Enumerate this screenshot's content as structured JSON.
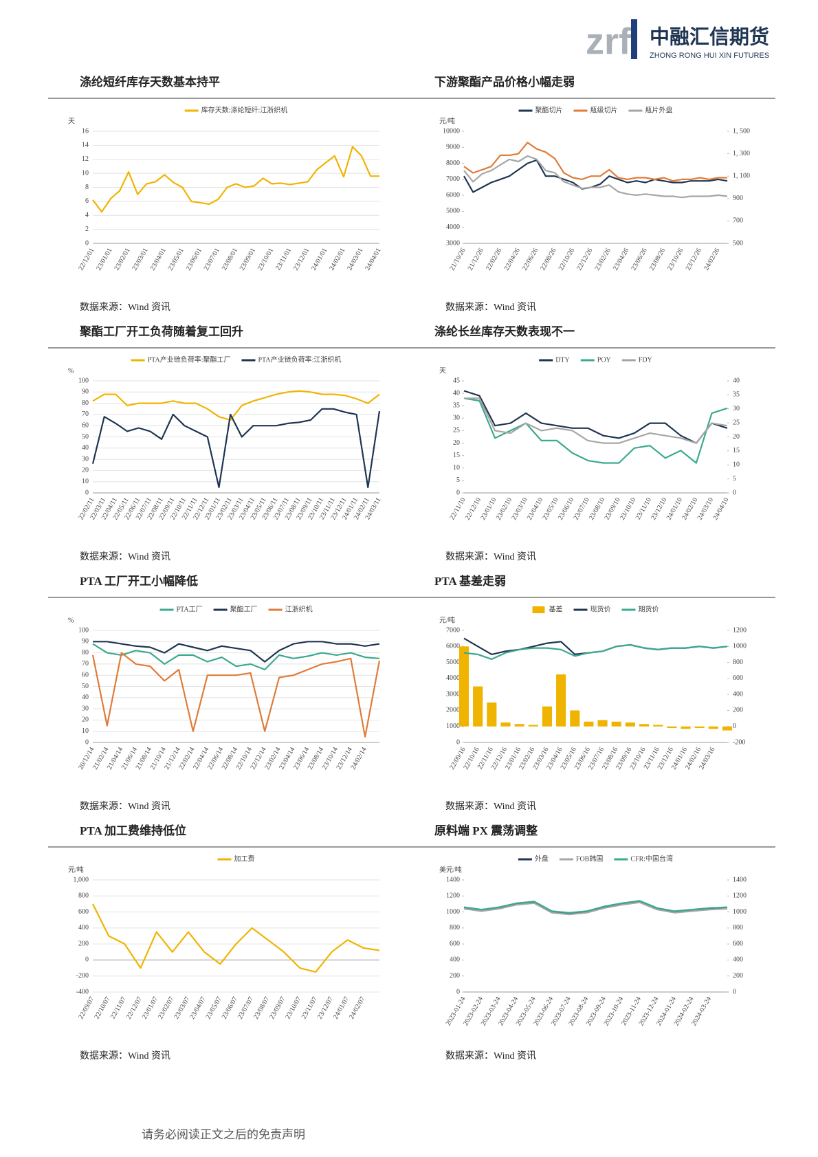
{
  "header": {
    "logo_mark": "zrf",
    "company_cn": "中融汇信期货",
    "company_en": "ZHONG RONG HUI XIN FUTURES"
  },
  "chart_data": [
    {
      "type": "line",
      "title": "涤纶短纤库存天数基本持平",
      "y_label": "天",
      "source": "数据来源：Wind 资讯",
      "grid": true,
      "categories": [
        "22/12/01",
        null,
        "23/01/01",
        null,
        "23/02/01",
        null,
        "23/03/01",
        null,
        "23/04/01",
        null,
        "23/05/01",
        null,
        "23/06/01",
        null,
        "23/07/01",
        null,
        "23/08/01",
        null,
        "23/09/01",
        null,
        "23/10/01",
        null,
        "23/11/01",
        null,
        "23/12/01",
        null,
        "24/01/01",
        null,
        "24/02/01",
        null,
        "24/03/01",
        null,
        "24/04/01"
      ],
      "series": [
        {
          "name": "库存天数:涤纶短纤:江浙织机",
          "color": "#f0b400",
          "values": [
            6.2,
            4.5,
            6.4,
            7.5,
            10.2,
            7.0,
            8.5,
            8.8,
            9.8,
            8.7,
            8.0,
            6.0,
            5.8,
            5.6,
            6.3,
            8.0,
            8.5,
            8.0,
            8.2,
            9.3,
            8.5,
            8.6,
            8.4,
            8.6,
            8.8,
            10.5,
            11.5,
            12.5,
            9.5,
            13.8,
            12.5,
            9.6,
            9.6
          ]
        }
      ],
      "ylim": [
        0,
        16
      ],
      "yticks": [
        0,
        2,
        4,
        6,
        8,
        10,
        12,
        14,
        16
      ]
    },
    {
      "type": "line",
      "title": "下游聚酯产品价格小幅走弱",
      "y_label": "元/吨",
      "source": "数据来源：Wind 资讯",
      "grid": false,
      "categories": [
        "21/10/26",
        null,
        "21/12/26",
        null,
        "22/02/26",
        null,
        "22/04/26",
        null,
        "22/06/26",
        null,
        "22/08/26",
        null,
        "22/10/26",
        null,
        "22/12/26",
        null,
        "23/02/26",
        null,
        "23/04/26",
        null,
        "23/06/26",
        null,
        "23/08/26",
        null,
        "23/10/26",
        null,
        "23/12/26",
        null,
        "24/02/26",
        null
      ],
      "series": [
        {
          "name": "聚酯切片",
          "color": "#1f3552",
          "values": [
            7200,
            6200,
            6500,
            6800,
            7000,
            7200,
            7600,
            8000,
            8200,
            7200,
            7200,
            7000,
            6800,
            6400,
            6500,
            6700,
            7200,
            7000,
            6800,
            6900,
            6800,
            7000,
            6900,
            6800,
            6800,
            6900,
            6900,
            6900,
            7000,
            6900
          ]
        },
        {
          "name": "瓶级切片",
          "color": "#e07b39",
          "values": [
            7800,
            7400,
            7600,
            7800,
            8500,
            8500,
            8600,
            9300,
            8900,
            8700,
            8300,
            7400,
            7100,
            7000,
            7200,
            7200,
            7600,
            7100,
            7000,
            7100,
            7100,
            7000,
            7100,
            6900,
            7000,
            7000,
            7100,
            7000,
            7100,
            7100
          ]
        },
        {
          "name": "瓶片外盘",
          "color": "#a6a6a6",
          "axis": "y2",
          "values": [
            1150,
            1050,
            1120,
            1150,
            1200,
            1250,
            1230,
            1280,
            1250,
            1150,
            1130,
            1050,
            1020,
            990,
            1000,
            1000,
            1020,
            960,
            940,
            930,
            940,
            930,
            920,
            920,
            910,
            920,
            920,
            920,
            930,
            920
          ]
        }
      ],
      "ylim": [
        3000,
        10000
      ],
      "yticks": [
        3000,
        4000,
        5000,
        6000,
        7000,
        8000,
        9000,
        10000
      ],
      "y2lim": [
        500,
        1500
      ],
      "y2ticks": [
        500,
        700,
        900,
        {
          "value": 1100,
          "label": "1, 100"
        },
        {
          "value": 1300,
          "label": "1, 300"
        },
        {
          "value": 1500,
          "label": "1, 500"
        }
      ]
    },
    {
      "type": "line",
      "title": "聚酯工厂开工负荷随着复工回升",
      "y_label": "%",
      "source": "数据来源：Wind 资讯",
      "grid": true,
      "categories": [
        "22/02/11",
        "22/03/11",
        "22/04/11",
        "22/05/11",
        "22/06/11",
        "22/07/11",
        "22/08/11",
        "22/09/11",
        "22/10/11",
        "22/11/11",
        "22/12/11",
        "23/01/11",
        "23/02/11",
        "23/03/11",
        "23/04/11",
        "23/05/11",
        "23/06/11",
        "23/07/11",
        "23/08/11",
        "23/09/11",
        "23/10/11",
        "23/11/11",
        "23/12/11",
        "24/01/11",
        "24/02/11",
        "24/03/11"
      ],
      "series": [
        {
          "name": "PTA产业链负荷率:聚酯工厂",
          "color": "#f0b400",
          "values": [
            82,
            88,
            88,
            78,
            80,
            80,
            80,
            82,
            80,
            80,
            75,
            68,
            65,
            78,
            82,
            85,
            88,
            90,
            91,
            90,
            88,
            88,
            87,
            84,
            80,
            88
          ]
        },
        {
          "name": "PTA产业链负荷率:江浙织机",
          "color": "#1f3552",
          "values": [
            26,
            68,
            62,
            55,
            58,
            55,
            48,
            70,
            60,
            55,
            50,
            5,
            70,
            50,
            60,
            60,
            60,
            62,
            63,
            65,
            75,
            75,
            72,
            70,
            5,
            73
          ]
        }
      ],
      "ylim": [
        0,
        100
      ],
      "yticks": [
        0,
        10,
        20,
        30,
        40,
        50,
        60,
        70,
        80,
        90,
        100
      ]
    },
    {
      "type": "line",
      "title": "涤纶长丝库存天数表现不一",
      "y_label": "天",
      "source": "数据来源：Wind 资讯",
      "grid": false,
      "categories": [
        "22/11/10",
        "22/12/10",
        "23/01/10",
        "23/02/10",
        "23/03/10",
        "23/04/10",
        "23/05/10",
        "23/06/10",
        "23/07/10",
        "23/08/10",
        "23/09/10",
        "23/10/10",
        "23/11/10",
        "23/12/10",
        "24/01/10",
        "24/02/10",
        "24/03/10",
        "24/04/10"
      ],
      "series": [
        {
          "name": "DTY",
          "color": "#1f3552",
          "values": [
            41,
            39,
            27,
            28,
            32,
            28,
            27,
            26,
            26,
            23,
            22,
            24,
            28,
            28,
            23,
            20,
            28,
            26
          ]
        },
        {
          "name": "POY",
          "color": "#3aaa8e",
          "values": [
            38,
            37,
            22,
            25,
            28,
            21,
            21,
            16,
            13,
            12,
            12,
            18,
            19,
            14,
            17,
            12,
            32,
            34
          ]
        },
        {
          "name": "FDY",
          "color": "#a6a6a6",
          "values": [
            38,
            38,
            25,
            24,
            28,
            25,
            26,
            25,
            21,
            20,
            20,
            22,
            24,
            23,
            22,
            20,
            28,
            27
          ]
        }
      ],
      "ylim": [
        0,
        45
      ],
      "yticks": [
        0,
        5,
        10,
        15,
        20,
        25,
        30,
        35,
        40,
        45
      ],
      "y2lim": [
        0,
        40
      ],
      "y2ticks": [
        0,
        5,
        10,
        15,
        20,
        25,
        30,
        35,
        40
      ]
    },
    {
      "type": "line",
      "title": "PTA 工厂开工小幅降低",
      "y_label": "%",
      "source": "数据来源：Wind 资讯",
      "grid": true,
      "categories": [
        "20/12/14",
        "21/02/14",
        "21/04/14",
        "21/06/14",
        "21/08/14",
        "21/10/14",
        "21/12/14",
        "22/02/14",
        "22/04/14",
        "22/06/14",
        "22/08/14",
        "22/10/14",
        "22/12/14",
        "23/02/14",
        "23/04/14",
        "23/06/14",
        "23/08/14",
        "23/10/14",
        "23/12/14",
        "24/02/14",
        null
      ],
      "series": [
        {
          "name": "PTA工厂",
          "color": "#3aaa8e",
          "values": [
            88,
            80,
            78,
            82,
            80,
            70,
            78,
            78,
            72,
            76,
            68,
            70,
            65,
            78,
            75,
            77,
            80,
            78,
            80,
            76,
            75
          ]
        },
        {
          "name": "聚酯工厂",
          "color": "#1f3552",
          "values": [
            90,
            90,
            88,
            86,
            85,
            80,
            88,
            85,
            82,
            86,
            84,
            82,
            72,
            82,
            88,
            90,
            90,
            88,
            88,
            86,
            88
          ]
        },
        {
          "name": "江浙织机",
          "color": "#e07b39",
          "values": [
            78,
            15,
            80,
            70,
            68,
            55,
            65,
            10,
            60,
            60,
            60,
            62,
            10,
            58,
            60,
            65,
            70,
            72,
            75,
            5,
            73
          ]
        }
      ],
      "ylim": [
        0,
        100
      ],
      "yticks": [
        0,
        10,
        20,
        30,
        40,
        50,
        60,
        70,
        80,
        90,
        100
      ]
    },
    {
      "type": "combo",
      "title": "PTA 基差走弱",
      "y_label": "元/吨",
      "source": "数据来源：Wind 资讯",
      "grid": false,
      "categories": [
        "22/09/16",
        "22/10/16",
        "22/11/16",
        "22/12/16",
        "23/01/16",
        "23/02/16",
        "23/03/16",
        "23/04/16",
        "23/05/16",
        "23/06/16",
        "23/07/16",
        "23/08/16",
        "23/09/16",
        "23/10/16",
        "23/11/16",
        "23/12/16",
        "24/01/16",
        "24/02/16",
        "24/03/16",
        null
      ],
      "series": [
        {
          "name": "基差",
          "type": "bar",
          "axis": "y2",
          "color": "#f0b400",
          "values": [
            1000,
            500,
            300,
            50,
            30,
            20,
            250,
            650,
            200,
            60,
            80,
            60,
            50,
            30,
            20,
            -20,
            -30,
            -20,
            -30,
            -50
          ]
        },
        {
          "name": "现货价",
          "type": "line",
          "color": "#1f3552",
          "values": [
            6500,
            6000,
            5500,
            5700,
            5800,
            6000,
            6200,
            6300,
            5500,
            5600,
            5700,
            6000,
            6100,
            5900,
            5800,
            5900,
            5900,
            6000,
            5900,
            6000
          ]
        },
        {
          "name": "期货价",
          "type": "line",
          "color": "#3aaa8e",
          "values": [
            5600,
            5500,
            5200,
            5600,
            5800,
            5900,
            5900,
            5800,
            5400,
            5600,
            5700,
            6000,
            6100,
            5900,
            5800,
            5900,
            5900,
            6000,
            5900,
            6000
          ]
        }
      ],
      "ylim": [
        0,
        7000
      ],
      "yticks": [
        0,
        1000,
        2000,
        3000,
        4000,
        5000,
        6000,
        7000
      ],
      "y2lim": [
        -200,
        1200
      ],
      "y2ticks": [
        -200,
        0,
        200,
        400,
        600,
        800,
        1000,
        1200
      ]
    },
    {
      "type": "line",
      "title": "PTA 加工费维持低位",
      "y_label": "元/吨",
      "source": "数据来源：Wind 资讯",
      "grid": true,
      "categories": [
        "22/09/07",
        "22/10/07",
        "22/11/07",
        "22/12/07",
        "23/01/07",
        "23/02/07",
        "23/03/07",
        "23/04/07",
        "23/05/07",
        "23/06/07",
        "23/07/07",
        "23/08/07",
        "23/09/07",
        "23/10/07",
        "23/11/07",
        "23/12/07",
        "24/01/07",
        "24/02/07",
        null
      ],
      "series": [
        {
          "name": "加工费",
          "color": "#f0b400",
          "values": [
            700,
            300,
            200,
            -100,
            350,
            100,
            350,
            100,
            -50,
            200,
            400,
            250,
            100,
            -100,
            -150,
            100,
            250,
            150,
            120
          ]
        }
      ],
      "ylim": [
        -400,
        1000
      ],
      "yticks": [
        -400,
        -200,
        0,
        200,
        400,
        600,
        800,
        {
          "value": 1000,
          "label": "1,000"
        }
      ]
    },
    {
      "type": "line",
      "title": "原料端 PX 震荡调整",
      "y_label": "美元/吨",
      "source": "数据来源：Wind 资讯",
      "grid": false,
      "categories": [
        "2023-01-24",
        "2023-02-24",
        "2023-03-24",
        "2023-04-24",
        "2023-05-24",
        "2023-06-24",
        "2023-07-24",
        "2023-08-24",
        "2023-09-24",
        "2023-10-24",
        "2023-11-24",
        "2023-12-24",
        "2024-01-24",
        "2024-02-24",
        "2024-03-24",
        null
      ],
      "series": [
        {
          "name": "外盘",
          "color": "#1f3552",
          "values": [
            1050,
            1020,
            1050,
            1100,
            1120,
            1000,
            980,
            1000,
            1060,
            1100,
            1130,
            1040,
            1000,
            1020,
            1040,
            1050
          ]
        },
        {
          "name": "FOB韩国",
          "color": "#a6a6a6",
          "values": [
            1040,
            1010,
            1040,
            1090,
            1110,
            990,
            970,
            990,
            1050,
            1090,
            1120,
            1030,
            990,
            1010,
            1030,
            1040
          ]
        },
        {
          "name": "CFR:中国台湾",
          "color": "#3aaa8e",
          "values": [
            1060,
            1030,
            1060,
            1110,
            1130,
            1010,
            990,
            1010,
            1070,
            1110,
            1140,
            1050,
            1010,
            1030,
            1050,
            1060
          ]
        }
      ],
      "ylim": [
        0,
        1400
      ],
      "yticks": [
        0,
        200,
        400,
        600,
        800,
        1000,
        1200,
        1400
      ],
      "y2lim": [
        0,
        1400
      ],
      "y2ticks": [
        0,
        200,
        400,
        600,
        800,
        1000,
        1200,
        1400
      ]
    }
  ],
  "footer": {
    "disclaimer": "请务必阅读正文之后的免责声明"
  }
}
